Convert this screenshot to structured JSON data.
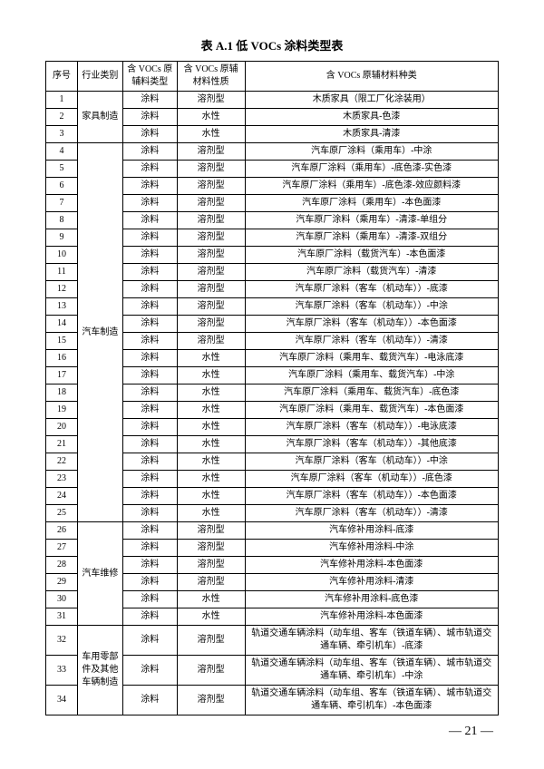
{
  "title": "表 A.1  低 VOCs 涂料类型表",
  "page_number": "— 21 —",
  "columns": [
    "序号",
    "行业类别",
    "含 VOCs 原辅料类型",
    "含 VOCs 原辅材料性质",
    "含 VOCs 原辅材料种类"
  ],
  "groups": [
    {
      "industry": "家具制造",
      "rows": [
        {
          "n": "1",
          "mat": "涂料",
          "nat": "溶剂型",
          "kind": "木质家具（限工厂化涂装用）"
        },
        {
          "n": "2",
          "mat": "涂料",
          "nat": "水性",
          "kind": "木质家具-色漆"
        },
        {
          "n": "3",
          "mat": "涂料",
          "nat": "水性",
          "kind": "木质家具-清漆"
        }
      ]
    },
    {
      "industry": "汽车制造",
      "rows": [
        {
          "n": "4",
          "mat": "涂料",
          "nat": "溶剂型",
          "kind": "汽车原厂涂料（乘用车）-中涂"
        },
        {
          "n": "5",
          "mat": "涂料",
          "nat": "溶剂型",
          "kind": "汽车原厂涂料（乘用车）-底色漆-实色漆"
        },
        {
          "n": "6",
          "mat": "涂料",
          "nat": "溶剂型",
          "kind": "汽车原厂涂料（乘用车）-底色漆-效应颜料漆"
        },
        {
          "n": "7",
          "mat": "涂料",
          "nat": "溶剂型",
          "kind": "汽车原厂涂料（乘用车）-本色面漆"
        },
        {
          "n": "8",
          "mat": "涂料",
          "nat": "溶剂型",
          "kind": "汽车原厂涂料（乘用车）-清漆-单组分"
        },
        {
          "n": "9",
          "mat": "涂料",
          "nat": "溶剂型",
          "kind": "汽车原厂涂料（乘用车）-清漆-双组分"
        },
        {
          "n": "10",
          "mat": "涂料",
          "nat": "溶剂型",
          "kind": "汽车原厂涂料（载货汽车）-本色面漆"
        },
        {
          "n": "11",
          "mat": "涂料",
          "nat": "溶剂型",
          "kind": "汽车原厂涂料（载货汽车）-清漆"
        },
        {
          "n": "12",
          "mat": "涂料",
          "nat": "溶剂型",
          "kind": "汽车原厂涂料（客车（机动车））-底漆"
        },
        {
          "n": "13",
          "mat": "涂料",
          "nat": "溶剂型",
          "kind": "汽车原厂涂料（客车（机动车））-中涂"
        },
        {
          "n": "14",
          "mat": "涂料",
          "nat": "溶剂型",
          "kind": "汽车原厂涂料（客车（机动车））-本色面漆"
        },
        {
          "n": "15",
          "mat": "涂料",
          "nat": "溶剂型",
          "kind": "汽车原厂涂料（客车（机动车））-清漆"
        },
        {
          "n": "16",
          "mat": "涂料",
          "nat": "水性",
          "kind": "汽车原厂涂料（乘用车、载货汽车）-电泳底漆"
        },
        {
          "n": "17",
          "mat": "涂料",
          "nat": "水性",
          "kind": "汽车原厂涂料（乘用车、载货汽车）-中涂"
        },
        {
          "n": "18",
          "mat": "涂料",
          "nat": "水性",
          "kind": "汽车原厂涂料（乘用车、载货汽车）-底色漆"
        },
        {
          "n": "19",
          "mat": "涂料",
          "nat": "水性",
          "kind": "汽车原厂涂料（乘用车、载货汽车）-本色面漆"
        },
        {
          "n": "20",
          "mat": "涂料",
          "nat": "水性",
          "kind": "汽车原厂涂料（客车（机动车））-电泳底漆"
        },
        {
          "n": "21",
          "mat": "涂料",
          "nat": "水性",
          "kind": "汽车原厂涂料（客车（机动车））-其他底漆"
        },
        {
          "n": "22",
          "mat": "涂料",
          "nat": "水性",
          "kind": "汽车原厂涂料（客车（机动车））-中涂"
        },
        {
          "n": "23",
          "mat": "涂料",
          "nat": "水性",
          "kind": "汽车原厂涂料（客车（机动车））-底色漆"
        },
        {
          "n": "24",
          "mat": "涂料",
          "nat": "水性",
          "kind": "汽车原厂涂料（客车（机动车））-本色面漆"
        },
        {
          "n": "25",
          "mat": "涂料",
          "nat": "水性",
          "kind": "汽车原厂涂料（客车（机动车））-清漆"
        }
      ]
    },
    {
      "industry": "汽车维修",
      "rows": [
        {
          "n": "26",
          "mat": "涂料",
          "nat": "溶剂型",
          "kind": "汽车修补用涂料-底漆"
        },
        {
          "n": "27",
          "mat": "涂料",
          "nat": "溶剂型",
          "kind": "汽车修补用涂料-中涂"
        },
        {
          "n": "28",
          "mat": "涂料",
          "nat": "溶剂型",
          "kind": "汽车修补用涂料-本色面漆"
        },
        {
          "n": "29",
          "mat": "涂料",
          "nat": "溶剂型",
          "kind": "汽车修补用涂料-清漆"
        },
        {
          "n": "30",
          "mat": "涂料",
          "nat": "水性",
          "kind": "汽车修补用涂料-底色漆"
        },
        {
          "n": "31",
          "mat": "涂料",
          "nat": "水性",
          "kind": "汽车修补用涂料-本色面漆"
        }
      ]
    },
    {
      "industry": "车用零部件及其他车辆制造",
      "rows": [
        {
          "n": "32",
          "mat": "涂料",
          "nat": "溶剂型",
          "kind": "轨道交通车辆涂料（动车组、客车（铁道车辆）、城市轨道交通车辆、牵引机车）-底漆"
        },
        {
          "n": "33",
          "mat": "涂料",
          "nat": "溶剂型",
          "kind": "轨道交通车辆涂料（动车组、客车（铁道车辆）、城市轨道交通车辆、牵引机车）-中涂"
        },
        {
          "n": "34",
          "mat": "涂料",
          "nat": "溶剂型",
          "kind": "轨道交通车辆涂料（动车组、客车（铁道车辆）、城市轨道交通车辆、牵引机车）-本色面漆"
        }
      ]
    }
  ]
}
